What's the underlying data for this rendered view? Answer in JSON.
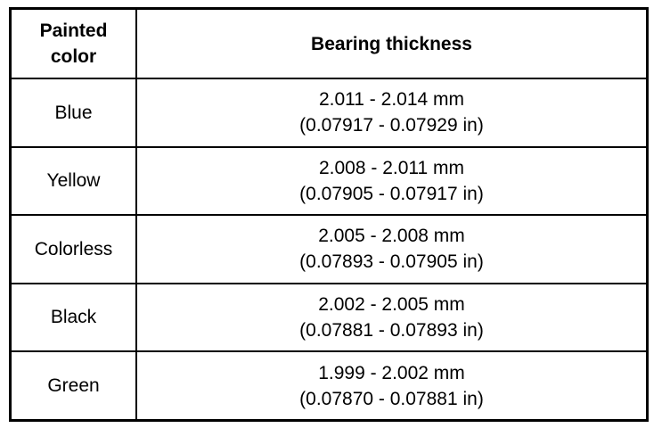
{
  "table": {
    "header": [
      [
        "Painted",
        "color"
      ],
      [
        "Bearing thickness"
      ]
    ],
    "rows": [
      [
        [
          "Blue"
        ],
        [
          "2.011 - 2.014 mm",
          "(0.07917 - 0.07929 in)"
        ]
      ],
      [
        [
          "Yellow"
        ],
        [
          "2.008 - 2.011 mm",
          "(0.07905 - 0.07917 in)"
        ]
      ],
      [
        [
          "Colorless"
        ],
        [
          "2.005 - 2.008 mm",
          "(0.07893 - 0.07905 in)"
        ]
      ],
      [
        [
          "Black"
        ],
        [
          "2.002 - 2.005 mm",
          "(0.07881 - 0.07893 in)"
        ]
      ],
      [
        [
          "Green"
        ],
        [
          "1.999 - 2.002 mm",
          "(0.07870 - 0.07881 in)"
        ]
      ]
    ]
  }
}
